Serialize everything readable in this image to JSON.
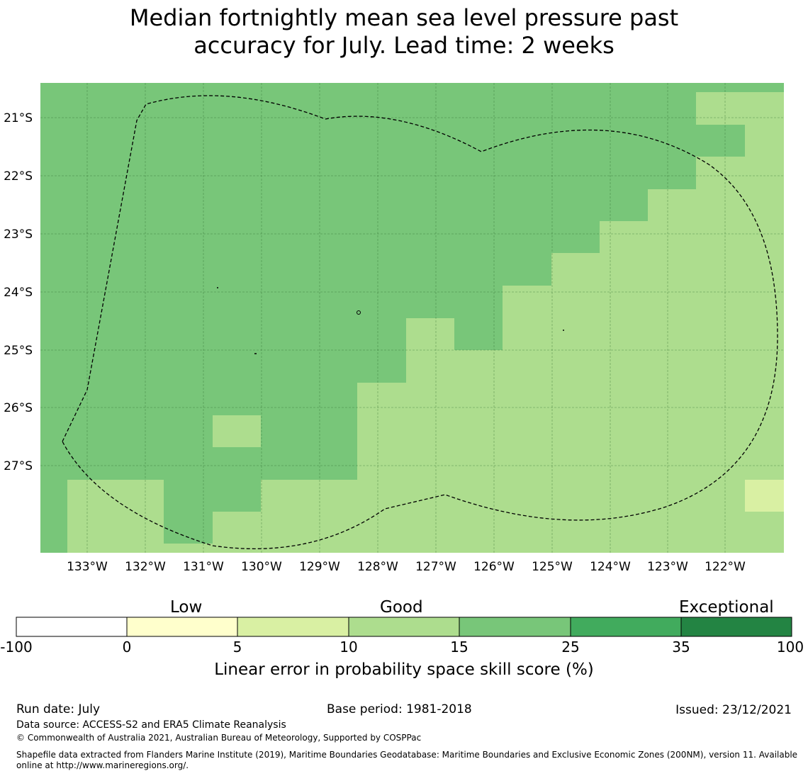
{
  "title": {
    "line1": "Median fortnightly mean sea level pressure past",
    "line2": "accuracy for July. Lead time: 2 weeks"
  },
  "map": {
    "lat_labels": [
      "21°S",
      "22°S",
      "23°S",
      "24°S",
      "25°S",
      "26°S",
      "27°S"
    ],
    "lon_labels": [
      "133°W",
      "132°W",
      "131°W",
      "130°W",
      "129°W",
      "128°W",
      "127°W",
      "126°W",
      "125°W",
      "124°W",
      "123°W",
      "122°W"
    ],
    "colors": {
      "15-25": "#78c679",
      "10-15": "#addd8e",
      "5-10": "#d9f0a3"
    }
  },
  "colorbar": {
    "categories": [
      "Low",
      "Good",
      "Exceptional"
    ],
    "ticks": [
      "-100",
      "0",
      "5",
      "10",
      "15",
      "25",
      "35",
      "100"
    ],
    "colors": [
      "#ffffff",
      "#ffffcc",
      "#d9f0a3",
      "#addd8e",
      "#78c679",
      "#41ab5d",
      "#238443"
    ],
    "label": "Linear error in probability space skill score (%)"
  },
  "footer": {
    "run_date": "Run date: July",
    "base_period": "Base period: 1981-2018",
    "issued": "Issued: 23/12/2021",
    "data_source": "Data source: ACCESS-S2 and ERA5 Climate Reanalysis",
    "copyright": "© Commonwealth of Australia 2021, Australian Bureau of Meteorology, Supported by COSPPac",
    "shapefile_line1": "Shapefile data extracted from Flanders Marine Institute (2019), Maritime Boundaries Geodatabase: Maritime Boundaries and Exclusive Economic Zones (200NM), version 11. Available",
    "shapefile_line2": "online at http://www.marineregions.org/."
  }
}
